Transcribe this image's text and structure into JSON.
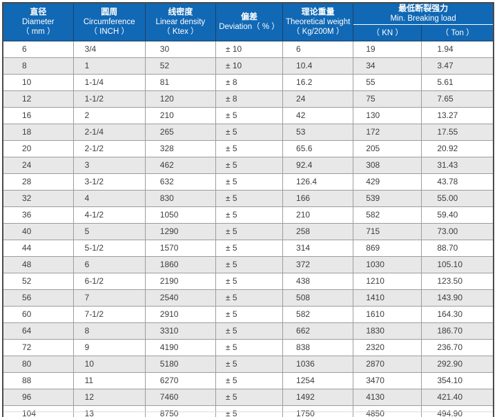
{
  "chart_data": {
    "type": "table",
    "title": "",
    "header_columns": [
      {
        "key": "diameter",
        "zh": "直径",
        "en": "Diameter",
        "unit": "（ mm ）"
      },
      {
        "key": "circumference",
        "zh": "圆周",
        "en": "Circumference",
        "unit": "（ INCH ）"
      },
      {
        "key": "linear-density",
        "zh": "线密度",
        "en": "Linear density",
        "unit": "（ Ktex ）"
      },
      {
        "key": "deviation",
        "zh": "偏差",
        "en": "Deviation（ % ）",
        "unit": ""
      },
      {
        "key": "theoretical-weight",
        "zh": "理论重量",
        "en": "Theoretical weight",
        "unit": "（ Kg/200M ）"
      },
      {
        "key": "min-breaking-load",
        "zh": "最低断裂强力",
        "en": "Min. Breaking load",
        "sub": [
          "（ KN ）",
          "（ Ton ）"
        ]
      }
    ],
    "rows": [
      [
        "6",
        "3/4",
        "30",
        "± 10",
        "6",
        "19",
        "1.94"
      ],
      [
        "8",
        "1",
        "52",
        "± 10",
        "10.4",
        "34",
        "3.47"
      ],
      [
        "10",
        "1-1/4",
        "81",
        "± 8",
        "16.2",
        "55",
        "5.61"
      ],
      [
        "12",
        "1-1/2",
        "120",
        "± 8",
        "24",
        "75",
        "7.65"
      ],
      [
        "16",
        "2",
        "210",
        "± 5",
        "42",
        "130",
        "13.27"
      ],
      [
        "18",
        "2-1/4",
        "265",
        "± 5",
        "53",
        "172",
        "17.55"
      ],
      [
        "20",
        "2-1/2",
        "328",
        "± 5",
        "65.6",
        "205",
        "20.92"
      ],
      [
        "24",
        "3",
        "462",
        "± 5",
        "92.4",
        "308",
        "31.43"
      ],
      [
        "28",
        "3-1/2",
        "632",
        "± 5",
        "126.4",
        "429",
        "43.78"
      ],
      [
        "32",
        "4",
        "830",
        "± 5",
        "166",
        "539",
        "55.00"
      ],
      [
        "36",
        "4-1/2",
        "1050",
        "± 5",
        "210",
        "582",
        "59.40"
      ],
      [
        "40",
        "5",
        "1290",
        "± 5",
        "258",
        "715",
        "73.00"
      ],
      [
        "44",
        "5-1/2",
        "1570",
        "± 5",
        "314",
        "869",
        "88.70"
      ],
      [
        "48",
        "6",
        "1860",
        "± 5",
        "372",
        "1030",
        "105.10"
      ],
      [
        "52",
        "6-1/2",
        "2190",
        "± 5",
        "438",
        "1210",
        "123.50"
      ],
      [
        "56",
        "7",
        "2540",
        "± 5",
        "508",
        "1410",
        "143.90"
      ],
      [
        "60",
        "7-1/2",
        "2910",
        "± 5",
        "582",
        "1610",
        "164.30"
      ],
      [
        "64",
        "8",
        "3310",
        "± 5",
        "662",
        "1830",
        "186.70"
      ],
      [
        "72",
        "9",
        "4190",
        "± 5",
        "838",
        "2320",
        "236.70"
      ],
      [
        "80",
        "10",
        "5180",
        "± 5",
        "1036",
        "2870",
        "292.90"
      ],
      [
        "88",
        "11",
        "6270",
        "± 5",
        "1254",
        "3470",
        "354.10"
      ],
      [
        "96",
        "12",
        "7460",
        "± 5",
        "1492",
        "4130",
        "421.40"
      ],
      [
        "104",
        "13",
        "8750",
        "± 5",
        "1750",
        "4850",
        "494.90"
      ]
    ],
    "layout": {
      "zebra_striping": true,
      "grid": true,
      "legend": "none"
    }
  },
  "colors": {
    "header_background": "#1168b4",
    "header_text": "#ffffff",
    "header_divider": "#1d4168",
    "header_sub_divider": "#ffffff",
    "zebra_row": "#e8e8e8",
    "row_white": "#ffffff",
    "body_text": "#3d3d3d",
    "cell_border": "#9c9c9c",
    "outer_border": "#4a4a4a"
  }
}
